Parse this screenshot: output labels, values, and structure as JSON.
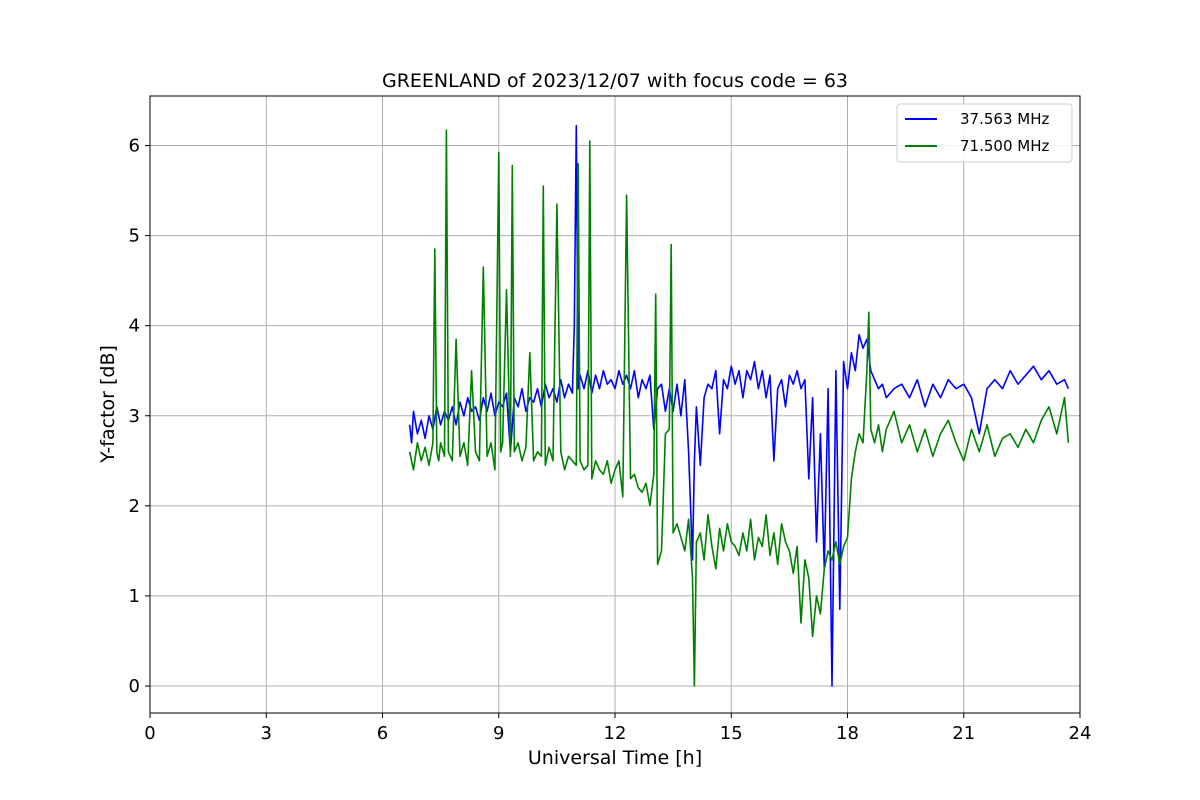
{
  "chart_data": {
    "type": "line",
    "title": "GREENLAND of 2023/12/07 with focus code = 63",
    "xlabel": "Universal Time [h]",
    "ylabel": "Y-factor [dB]",
    "xlim": [
      0,
      24
    ],
    "ylim": [
      -0.3,
      6.55
    ],
    "xticks": [
      0,
      3,
      6,
      9,
      12,
      15,
      18,
      21,
      24
    ],
    "yticks": [
      0,
      1,
      2,
      3,
      4,
      5,
      6
    ],
    "grid": true,
    "legend_position": "top-right",
    "series": [
      {
        "name": "37.563 MHz",
        "color": "#0000ff",
        "x": [
          6.7,
          6.75,
          6.8,
          6.9,
          7.0,
          7.1,
          7.2,
          7.3,
          7.4,
          7.5,
          7.6,
          7.7,
          7.8,
          7.9,
          8.0,
          8.1,
          8.2,
          8.3,
          8.4,
          8.5,
          8.6,
          8.7,
          8.8,
          8.9,
          9.0,
          9.1,
          9.2,
          9.3,
          9.4,
          9.5,
          9.6,
          9.7,
          9.8,
          9.9,
          10.0,
          10.1,
          10.2,
          10.3,
          10.4,
          10.5,
          10.6,
          10.7,
          10.8,
          10.9,
          10.95,
          11.0,
          11.05,
          11.1,
          11.2,
          11.3,
          11.4,
          11.5,
          11.6,
          11.7,
          11.8,
          11.9,
          12.0,
          12.1,
          12.2,
          12.3,
          12.4,
          12.5,
          12.6,
          12.7,
          12.8,
          12.9,
          13.0,
          13.1,
          13.2,
          13.3,
          13.4,
          13.5,
          13.6,
          13.7,
          13.8,
          13.9,
          14.0,
          14.05,
          14.1,
          14.2,
          14.3,
          14.4,
          14.5,
          14.6,
          14.7,
          14.8,
          14.9,
          15.0,
          15.1,
          15.2,
          15.3,
          15.4,
          15.5,
          15.6,
          15.7,
          15.8,
          15.9,
          16.0,
          16.1,
          16.2,
          16.3,
          16.4,
          16.5,
          16.6,
          16.7,
          16.8,
          16.9,
          17.0,
          17.1,
          17.2,
          17.3,
          17.4,
          17.5,
          17.6,
          17.7,
          17.8,
          17.9,
          18.0,
          18.1,
          18.2,
          18.3,
          18.4,
          18.5,
          18.6,
          18.7,
          18.8,
          18.9,
          19.0,
          19.2,
          19.4,
          19.6,
          19.8,
          20.0,
          20.2,
          20.4,
          20.6,
          20.8,
          21.0,
          21.2,
          21.4,
          21.6,
          21.8,
          22.0,
          22.2,
          22.4,
          22.6,
          22.8,
          23.0,
          23.2,
          23.4,
          23.6,
          23.7
        ],
        "y": [
          2.9,
          2.7,
          3.05,
          2.8,
          2.95,
          2.75,
          3.0,
          2.85,
          3.1,
          2.9,
          3.05,
          2.95,
          3.1,
          2.9,
          3.15,
          3.0,
          3.2,
          3.05,
          3.1,
          2.95,
          3.2,
          3.05,
          3.25,
          3.0,
          3.15,
          3.1,
          3.25,
          2.6,
          3.2,
          3.1,
          3.3,
          3.05,
          3.2,
          3.15,
          3.3,
          3.1,
          3.35,
          3.2,
          3.3,
          3.15,
          3.4,
          3.2,
          3.35,
          3.25,
          4.0,
          6.22,
          3.3,
          3.45,
          3.3,
          3.5,
          3.25,
          3.45,
          3.3,
          3.5,
          3.35,
          3.4,
          3.3,
          3.5,
          3.35,
          3.45,
          3.3,
          3.5,
          3.2,
          3.4,
          3.3,
          3.45,
          2.85,
          3.3,
          3.35,
          3.05,
          3.3,
          3.05,
          3.35,
          3.0,
          3.4,
          2.6,
          1.4,
          2.5,
          3.1,
          2.45,
          3.2,
          3.35,
          3.3,
          3.5,
          2.8,
          3.4,
          3.3,
          3.55,
          3.35,
          3.5,
          3.2,
          3.5,
          3.4,
          3.6,
          3.3,
          3.5,
          3.2,
          3.45,
          2.5,
          3.3,
          3.4,
          3.1,
          3.45,
          3.35,
          3.5,
          3.3,
          3.4,
          2.3,
          3.2,
          1.6,
          2.8,
          1.3,
          3.3,
          0.0,
          3.5,
          0.85,
          3.6,
          3.3,
          3.7,
          3.5,
          3.9,
          3.75,
          3.85,
          3.5,
          3.4,
          3.3,
          3.35,
          3.2,
          3.3,
          3.35,
          3.2,
          3.4,
          3.1,
          3.35,
          3.2,
          3.4,
          3.3,
          3.35,
          3.2,
          2.8,
          3.3,
          3.4,
          3.3,
          3.5,
          3.35,
          3.45,
          3.55,
          3.4,
          3.5,
          3.35,
          3.4,
          3.3
        ]
      },
      {
        "name": "71.500 MHz",
        "color": "#008000",
        "x": [
          6.7,
          6.8,
          6.9,
          7.0,
          7.1,
          7.2,
          7.3,
          7.35,
          7.4,
          7.45,
          7.5,
          7.6,
          7.65,
          7.7,
          7.8,
          7.9,
          8.0,
          8.1,
          8.2,
          8.3,
          8.4,
          8.5,
          8.6,
          8.7,
          8.8,
          8.9,
          9.0,
          9.05,
          9.1,
          9.2,
          9.3,
          9.35,
          9.4,
          9.5,
          9.6,
          9.7,
          9.8,
          9.9,
          10.0,
          10.1,
          10.15,
          10.2,
          10.3,
          10.4,
          10.5,
          10.6,
          10.7,
          10.8,
          10.9,
          11.0,
          11.05,
          11.1,
          11.2,
          11.3,
          11.35,
          11.4,
          11.5,
          11.6,
          11.7,
          11.8,
          11.9,
          12.0,
          12.1,
          12.2,
          12.3,
          12.4,
          12.5,
          12.6,
          12.7,
          12.8,
          12.9,
          13.0,
          13.05,
          13.1,
          13.2,
          13.3,
          13.4,
          13.45,
          13.5,
          13.6,
          13.7,
          13.8,
          13.9,
          14.0,
          14.05,
          14.1,
          14.2,
          14.3,
          14.4,
          14.5,
          14.6,
          14.7,
          14.8,
          14.9,
          15.0,
          15.1,
          15.2,
          15.3,
          15.4,
          15.5,
          15.6,
          15.7,
          15.8,
          15.9,
          16.0,
          16.1,
          16.2,
          16.3,
          16.4,
          16.5,
          16.6,
          16.7,
          16.8,
          16.9,
          17.0,
          17.1,
          17.2,
          17.3,
          17.4,
          17.5,
          17.6,
          17.7,
          17.8,
          17.9,
          18.0,
          18.1,
          18.2,
          18.3,
          18.4,
          18.5,
          18.55,
          18.6,
          18.7,
          18.8,
          18.9,
          19.0,
          19.2,
          19.4,
          19.6,
          19.8,
          20.0,
          20.2,
          20.4,
          20.6,
          20.8,
          21.0,
          21.2,
          21.4,
          21.6,
          21.8,
          22.0,
          22.2,
          22.4,
          22.6,
          22.8,
          23.0,
          23.2,
          23.4,
          23.6,
          23.7
        ],
        "y": [
          2.6,
          2.4,
          2.7,
          2.5,
          2.65,
          2.45,
          2.7,
          4.85,
          2.6,
          2.5,
          2.7,
          2.55,
          6.17,
          2.6,
          2.5,
          3.85,
          2.55,
          2.7,
          2.45,
          3.5,
          2.6,
          2.5,
          4.65,
          2.55,
          2.7,
          2.4,
          5.92,
          2.6,
          2.7,
          4.4,
          2.55,
          5.78,
          2.6,
          2.7,
          2.5,
          2.65,
          3.7,
          2.5,
          2.6,
          2.55,
          5.55,
          2.45,
          2.65,
          2.5,
          5.35,
          2.6,
          2.4,
          2.55,
          2.5,
          2.45,
          5.8,
          2.5,
          2.4,
          2.45,
          6.05,
          2.3,
          2.5,
          2.4,
          2.35,
          2.5,
          2.25,
          2.4,
          2.5,
          2.1,
          5.45,
          2.3,
          2.35,
          2.2,
          2.15,
          2.25,
          2.0,
          2.35,
          4.35,
          1.35,
          1.5,
          2.8,
          2.85,
          4.9,
          1.7,
          1.8,
          1.65,
          1.5,
          1.85,
          1.2,
          0.0,
          1.6,
          1.7,
          1.4,
          1.9,
          1.55,
          1.3,
          1.75,
          1.5,
          1.8,
          1.6,
          1.55,
          1.45,
          1.7,
          1.5,
          1.85,
          1.4,
          1.65,
          1.55,
          1.9,
          1.45,
          1.7,
          1.35,
          1.8,
          1.6,
          1.5,
          1.25,
          1.55,
          0.7,
          1.4,
          1.2,
          0.55,
          1.0,
          0.8,
          1.3,
          1.5,
          1.4,
          1.6,
          1.35,
          1.55,
          1.65,
          2.3,
          2.6,
          2.8,
          2.7,
          3.5,
          4.15,
          2.85,
          2.7,
          2.9,
          2.6,
          2.85,
          3.05,
          2.7,
          2.9,
          2.6,
          2.85,
          2.55,
          2.8,
          2.95,
          2.7,
          2.5,
          2.85,
          2.6,
          2.9,
          2.55,
          2.75,
          2.8,
          2.65,
          2.85,
          2.7,
          2.95,
          3.1,
          2.8,
          3.2,
          2.7
        ]
      }
    ]
  }
}
